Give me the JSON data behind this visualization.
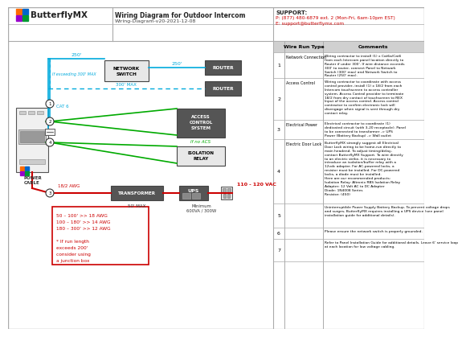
{
  "bg_color": "#ffffff",
  "title": "Wiring Diagram for Outdoor Intercom",
  "subtitle": "Wiring-Diagram-v20-2021-12-08",
  "support_title": "SUPPORT:",
  "support_phone": "P: (877) 480-6879 ext. 2 (Mon-Fri, 6am-10pm EST)",
  "support_email": "E: support@butterflymx.com",
  "cyan_color": "#00aadd",
  "green_color": "#00aa00",
  "red_color": "#cc0000",
  "logo_orange": "#FF6B00",
  "logo_blue": "#0066CC",
  "logo_purple": "#9900CC",
  "logo_green": "#009933",
  "table_rows": [
    {
      "num": "1",
      "type": "Network Connection",
      "comment": "Wiring contractor to install (1) x Cat6a/Cat6\nfrom each Intercom panel location directly to\nRouter if under 300'. If wire distance exceeds\n300' to router, connect Panel to Network\nSwitch (300' max) and Network Switch to\nRouter (250' max)."
    },
    {
      "num": "2",
      "type": "Access Control",
      "comment": "Wiring contractor to coordinate with access\ncontrol provider, install (1) x 18/2 from each\nIntercom touchscreen to access controller\nsystem. Access Control provider to terminate\n18/2 from dry contact of touchscreen to REX\nInput of the access control. Access control\ncontractor to confirm electronic lock will\ndisengage when signal is sent through dry\ncontact relay."
    },
    {
      "num": "3",
      "type": "Electrical Power",
      "comment": "Electrical contractor to coordinate (1)\ndedicated circuit (with 3-20 receptacle). Panel\nto be connected to transformer -> UPS\nPower (Battery Backup) -> Wall outlet"
    },
    {
      "num": "4",
      "type": "Electric Door Lock",
      "comment": "ButterflyMX strongly suggest all Electrical\nDoor Lock wiring to be home-run directly to\nmain headend. To adjust timing/delay,\ncontact ButterflyMX Support. To wire directly\nto an electric strike, it is necessary to\nintroduce an isolation/buffer relay with a\n12vdc adapter. For AC-powered locks, a\nresistor must be installed. For DC-powered\nlocks, a diode must be installed.\nHere are our recommended products:\nIsolation Relay: Altronix RBS Isolation Relay\nAdapter: 12 Volt AC to DC Adapter\nDiode: 1N4008 Series\nResistor: (450)"
    },
    {
      "num": "5",
      "type": "",
      "comment": "Uninterruptible Power Supply Battery Backup. To prevent voltage drops\nand surges, ButterflyMX requires installing a UPS device (see panel\ninstallation guide for additional details)."
    },
    {
      "num": "6",
      "type": "",
      "comment": "Please ensure the network switch is properly grounded."
    },
    {
      "num": "7",
      "type": "",
      "comment": "Refer to Panel Installation Guide for additional details. Leave 6' service loop\nat each location for low voltage cabling."
    }
  ]
}
